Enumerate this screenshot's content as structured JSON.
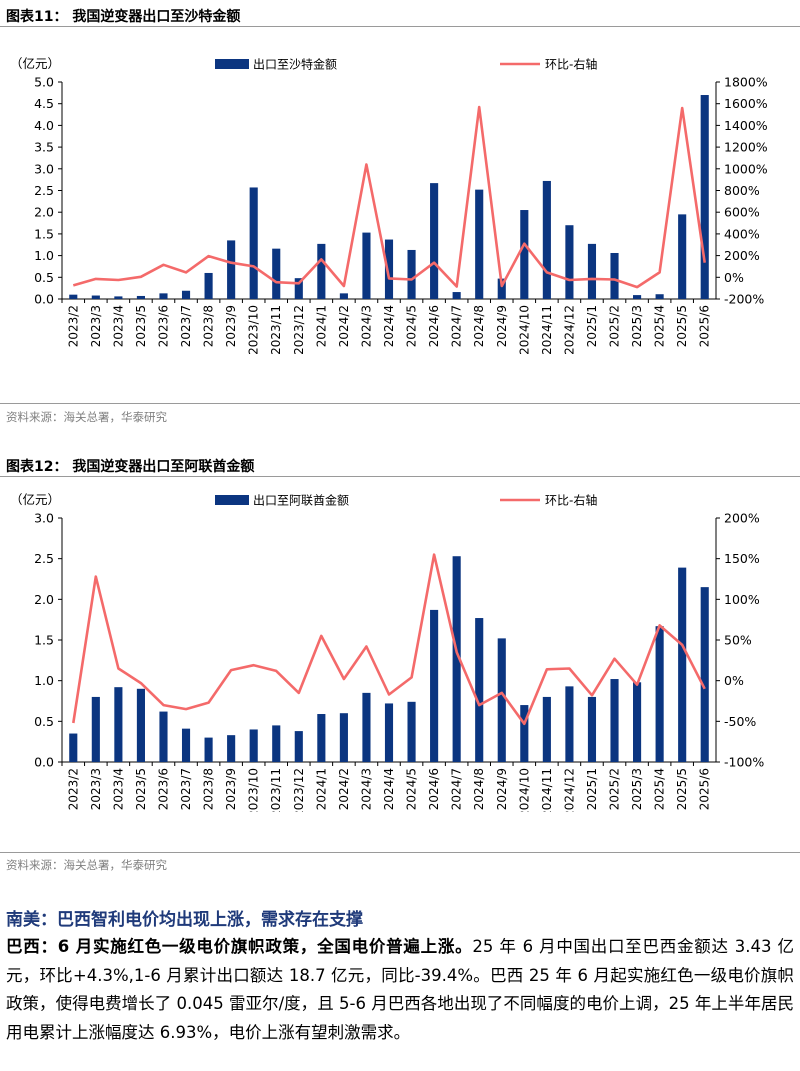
{
  "figure1": {
    "title": "图表11：  我国逆变器出口至沙特金额",
    "source": "资料来源：海关总署，华泰研究"
  },
  "figure2": {
    "title": "图表12：  我国逆变器出口至阿联酋金额",
    "source": "资料来源：海关总署，华泰研究"
  },
  "colors": {
    "bar": "#0b3580",
    "line": "#f46a6a",
    "heading": "#1f3a7a"
  },
  "chart_data": [
    {
      "type": "bar",
      "title": "我国逆变器出口至沙特金额",
      "ylabel": "（亿元）",
      "ylim": [
        0,
        5.0
      ],
      "yticks": [
        "0.0",
        "0.5",
        "1.0",
        "1.5",
        "2.0",
        "2.5",
        "3.0",
        "3.5",
        "4.0",
        "4.5",
        "5.0"
      ],
      "y2lim": [
        -200,
        1800
      ],
      "y2ticks": [
        "-200%",
        "0%",
        "200%",
        "400%",
        "600%",
        "800%",
        "1000%",
        "1200%",
        "1400%",
        "1600%",
        "1800%"
      ],
      "categories": [
        "2023/2",
        "2023/3",
        "2023/4",
        "2023/5",
        "2023/6",
        "2023/7",
        "2023/8",
        "2023/9",
        "2023/10",
        "2023/11",
        "2023/12",
        "2024/1",
        "2024/2",
        "2024/3",
        "2024/4",
        "2024/5",
        "2024/6",
        "2024/7",
        "2024/8",
        "2024/9",
        "2024/10",
        "2024/11",
        "2024/12",
        "2025/1",
        "2025/2",
        "2025/3",
        "2025/4",
        "2025/5",
        "2025/6"
      ],
      "series": [
        {
          "name": "出口至沙特金额",
          "type": "bar",
          "axis": "left",
          "values": [
            0.1,
            0.08,
            0.06,
            0.07,
            0.13,
            0.19,
            0.6,
            1.35,
            2.57,
            1.16,
            0.48,
            1.27,
            0.13,
            1.53,
            1.37,
            1.13,
            2.67,
            0.16,
            2.52,
            0.47,
            2.05,
            2.72,
            1.7,
            1.27,
            1.06,
            0.09,
            0.11,
            1.95,
            4.7
          ]
        },
        {
          "name": "环比-右轴",
          "type": "line",
          "axis": "right",
          "values": [
            -75,
            -15,
            -25,
            5,
            115,
            45,
            195,
            135,
            100,
            -45,
            -55,
            165,
            -80,
            1040,
            -10,
            -20,
            135,
            -85,
            1570,
            -80,
            310,
            45,
            -25,
            -15,
            -20,
            -90,
            45,
            1560,
            135
          ]
        }
      ]
    },
    {
      "type": "bar",
      "title": "我国逆变器出口至阿联酋金额",
      "ylabel": "（亿元）",
      "ylim": [
        0,
        3.0
      ],
      "yticks": [
        "0.0",
        "0.5",
        "1.0",
        "1.5",
        "2.0",
        "2.5",
        "3.0"
      ],
      "y2lim": [
        -100,
        200
      ],
      "y2ticks": [
        "-100%",
        "-50%",
        "0%",
        "50%",
        "100%",
        "150%",
        "200%"
      ],
      "categories": [
        "2023/2",
        "2023/3",
        "2023/4",
        "2023/5",
        "2023/6",
        "2023/7",
        "2023/8",
        "2023/9",
        "2023/10",
        "2023/11",
        "2023/12",
        "2024/1",
        "2024/2",
        "2024/3",
        "2024/4",
        "2024/5",
        "2024/6",
        "2024/7",
        "2024/8",
        "2024/9",
        "2024/10",
        "2024/11",
        "2024/12",
        "2025/1",
        "2025/2",
        "2025/3",
        "2025/4",
        "2025/5",
        "2025/6"
      ],
      "series": [
        {
          "name": "出口至阿联酋金额",
          "type": "bar",
          "axis": "left",
          "values": [
            0.35,
            0.8,
            0.92,
            0.9,
            0.62,
            0.41,
            0.3,
            0.33,
            0.4,
            0.45,
            0.38,
            0.59,
            0.6,
            0.85,
            0.72,
            0.74,
            1.87,
            2.53,
            1.77,
            1.52,
            0.7,
            0.8,
            0.93,
            0.8,
            1.02,
            0.98,
            1.67,
            2.39,
            2.15
          ]
        },
        {
          "name": "环比-右轴",
          "type": "line",
          "axis": "right",
          "values": [
            -52,
            128,
            15,
            -3,
            -30,
            -35,
            -27,
            13,
            19,
            12,
            -15,
            55,
            2,
            42,
            -17,
            4,
            155,
            35,
            -30,
            -15,
            -53,
            14,
            15,
            -18,
            27,
            -5,
            68,
            44,
            -10
          ]
        }
      ]
    }
  ],
  "section": {
    "heading": "南美：巴西智利电价均出现上涨，需求存在支撑",
    "para_bold": "巴西：6 月实施红色一级电价旗帜政策，全国电价普遍上涨。",
    "para_text": "25 年 6 月中国出口至巴西金额达 3.43 亿元，环比+4.3%,1-6 月累计出口额达 18.7 亿元，同比-39.4%。巴西 25 年 6 月起实施红色一级电价旗帜政策，使得电费增长了 0.045 雷亚尔/度，且 5-6 月巴西各地出现了不同幅度的电价上调，25 年上半年居民用电累计上涨幅度达 6.93%，电价上涨有望刺激需求。"
  }
}
